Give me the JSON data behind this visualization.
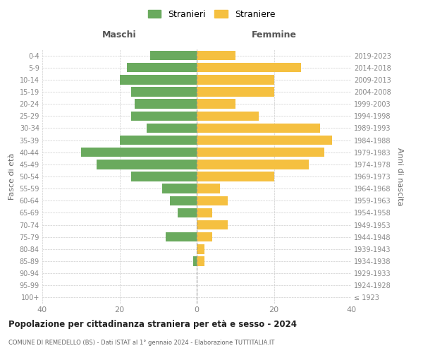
{
  "age_groups": [
    "100+",
    "95-99",
    "90-94",
    "85-89",
    "80-84",
    "75-79",
    "70-74",
    "65-69",
    "60-64",
    "55-59",
    "50-54",
    "45-49",
    "40-44",
    "35-39",
    "30-34",
    "25-29",
    "20-24",
    "15-19",
    "10-14",
    "5-9",
    "0-4"
  ],
  "birth_years": [
    "≤ 1923",
    "1924-1928",
    "1929-1933",
    "1934-1938",
    "1939-1943",
    "1944-1948",
    "1949-1953",
    "1954-1958",
    "1959-1963",
    "1964-1968",
    "1969-1973",
    "1974-1978",
    "1979-1983",
    "1984-1988",
    "1989-1993",
    "1994-1998",
    "1999-2003",
    "2004-2008",
    "2009-2013",
    "2014-2018",
    "2019-2023"
  ],
  "maschi": [
    0,
    0,
    0,
    1,
    0,
    8,
    0,
    5,
    7,
    9,
    17,
    26,
    30,
    20,
    13,
    17,
    16,
    17,
    20,
    18,
    12
  ],
  "femmine": [
    0,
    0,
    0,
    2,
    2,
    4,
    8,
    4,
    8,
    6,
    20,
    29,
    33,
    35,
    32,
    16,
    10,
    20,
    20,
    27,
    10
  ],
  "color_maschi": "#6aaa5e",
  "color_femmine": "#f5c040",
  "title": "Popolazione per cittadinanza straniera per età e sesso - 2024",
  "subtitle": "COMUNE DI REMEDELLO (BS) - Dati ISTAT al 1° gennaio 2024 - Elaborazione TUTTITALIA.IT",
  "ylabel_left": "Fasce di età",
  "ylabel_right": "Anni di nascita",
  "label_maschi": "Stranieri",
  "label_femmine": "Straniere",
  "xlim": 40,
  "background_color": "#ffffff",
  "grid_color": "#cccccc"
}
